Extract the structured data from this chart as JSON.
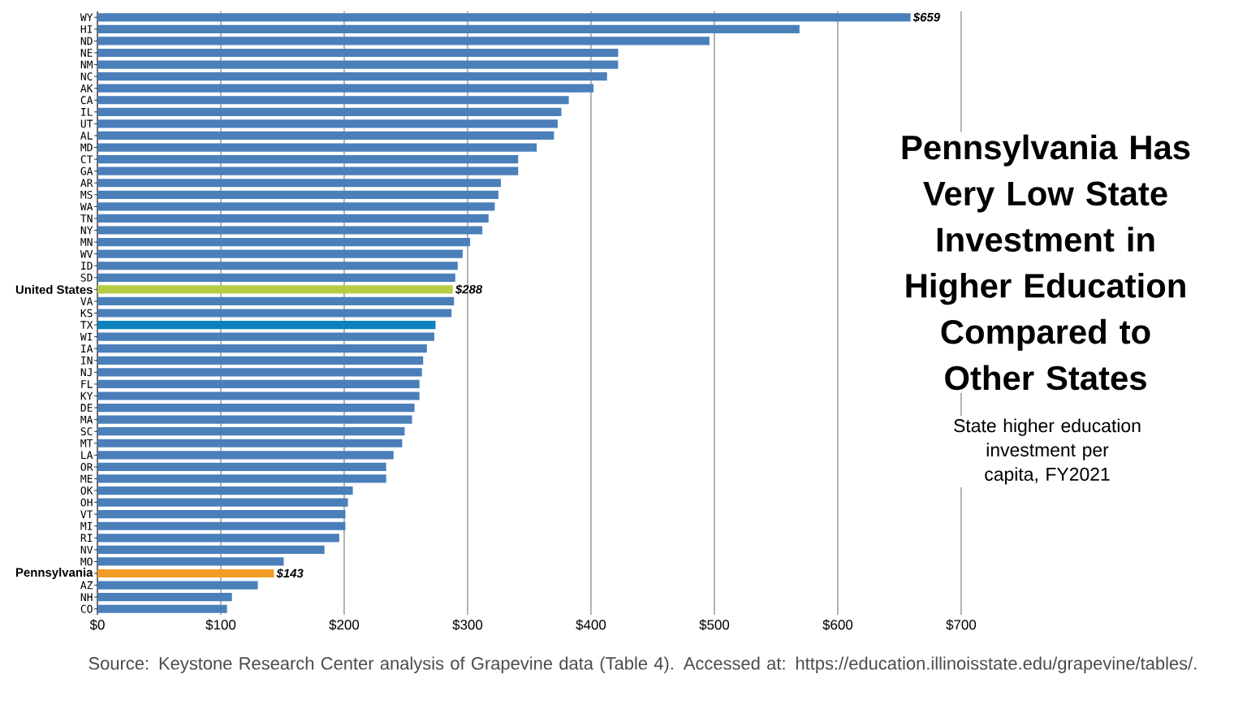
{
  "chart_data": {
    "type": "bar",
    "orientation": "horizontal",
    "title": "Pennsylvania Has Very Low State Investment in Higher Education Compared to Other States",
    "subtitle": "State higher education investment per capita, FY2021",
    "categories": [
      "WY",
      "HI",
      "ND",
      "NE",
      "NM",
      "NC",
      "AK",
      "CA",
      "IL",
      "UT",
      "AL",
      "MD",
      "CT",
      "GA",
      "AR",
      "MS",
      "WA",
      "TN",
      "NY",
      "MN",
      "WV",
      "ID",
      "SD",
      "United States",
      "VA",
      "KS",
      "TX",
      "WI",
      "IA",
      "IN",
      "NJ",
      "FL",
      "KY",
      "DE",
      "MA",
      "SC",
      "MT",
      "LA",
      "OR",
      "ME",
      "OK",
      "OH",
      "VT",
      "MI",
      "RI",
      "NV",
      "MO",
      "Pennsylvania",
      "AZ",
      "NH",
      "CO"
    ],
    "values": [
      659,
      569,
      496,
      422,
      422,
      413,
      402,
      382,
      376,
      373,
      370,
      356,
      341,
      341,
      327,
      325,
      322,
      317,
      312,
      302,
      296,
      292,
      290,
      288,
      289,
      287,
      274,
      273,
      267,
      264,
      263,
      261,
      261,
      257,
      255,
      249,
      247,
      240,
      234,
      234,
      207,
      203,
      201,
      201,
      196,
      184,
      151,
      143,
      130,
      109,
      105
    ],
    "colors": [
      "#4a7fba",
      "#4a7fba",
      "#4a7fba",
      "#4a7fba",
      "#4a7fba",
      "#4a7fba",
      "#4a7fba",
      "#4a7fba",
      "#4a7fba",
      "#4a7fba",
      "#4a7fba",
      "#4a7fba",
      "#4a7fba",
      "#4a7fba",
      "#4a7fba",
      "#4a7fba",
      "#4a7fba",
      "#4a7fba",
      "#4a7fba",
      "#4a7fba",
      "#4a7fba",
      "#4a7fba",
      "#4a7fba",
      "#b5cc45",
      "#4a7fba",
      "#4a7fba",
      "#0a82be",
      "#4a7fba",
      "#4a7fba",
      "#4a7fba",
      "#4a7fba",
      "#4a7fba",
      "#4a7fba",
      "#4a7fba",
      "#4a7fba",
      "#4a7fba",
      "#4a7fba",
      "#4a7fba",
      "#4a7fba",
      "#4a7fba",
      "#4a7fba",
      "#4a7fba",
      "#4a7fba",
      "#4a7fba",
      "#4a7fba",
      "#4a7fba",
      "#4a7fba",
      "#f29b26",
      "#4a7fba",
      "#4a7fba",
      "#4a7fba"
    ],
    "value_labels": [
      "$659",
      null,
      null,
      null,
      null,
      null,
      null,
      null,
      null,
      null,
      null,
      null,
      null,
      null,
      null,
      null,
      null,
      null,
      null,
      null,
      null,
      null,
      null,
      "$288",
      null,
      null,
      null,
      null,
      null,
      null,
      null,
      null,
      null,
      null,
      null,
      null,
      null,
      null,
      null,
      null,
      null,
      null,
      null,
      null,
      null,
      null,
      null,
      "$143",
      null,
      null,
      null
    ],
    "xlim": [
      0,
      700
    ],
    "xticks": [
      {
        "value": 0,
        "label": "$0"
      },
      {
        "value": 100,
        "label": "$100"
      },
      {
        "value": 200,
        "label": "$200"
      },
      {
        "value": 300,
        "label": "$300"
      },
      {
        "value": 400,
        "label": "$400"
      },
      {
        "value": 500,
        "label": "$500"
      },
      {
        "value": 600,
        "label": "$600"
      },
      {
        "value": 700,
        "label": "$700"
      }
    ],
    "grid": "x",
    "annotations": [
      "Source: Keystone Research Center analysis of Grapevine data (Table 4). Accessed at: https://education.illinoisstate.edu/grapevine/tables/."
    ]
  }
}
